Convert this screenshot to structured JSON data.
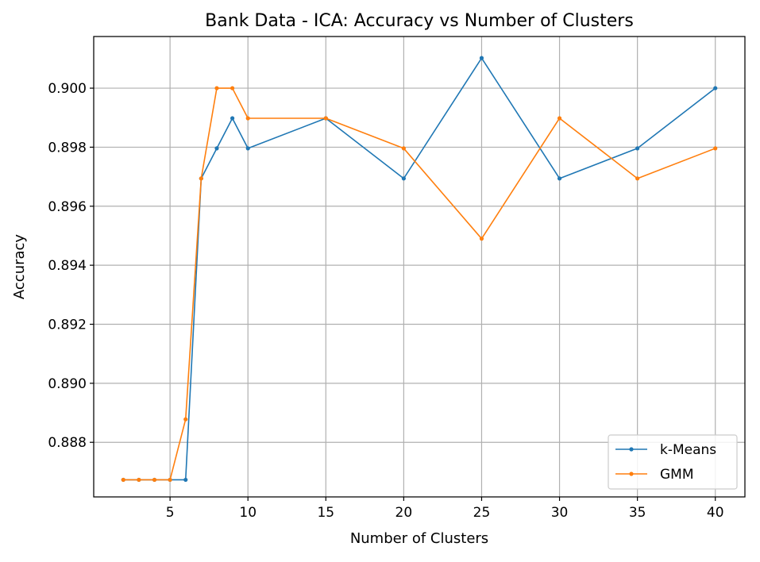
{
  "chart_data": {
    "type": "line",
    "title": "Bank Data - ICA: Accuracy vs Number of Clusters",
    "xlabel": "Number of Clusters",
    "ylabel": "Accuracy",
    "xlim": [
      0.1,
      41.9
    ],
    "ylim": [
      0.88615,
      0.90175
    ],
    "xticks": [
      5,
      10,
      15,
      20,
      25,
      30,
      35,
      40
    ],
    "xtick_labels": [
      "5",
      "10",
      "15",
      "20",
      "25",
      "30",
      "35",
      "40"
    ],
    "yticks": [
      0.888,
      0.89,
      0.892,
      0.894,
      0.896,
      0.898,
      0.9
    ],
    "ytick_labels": [
      "0.888",
      "0.890",
      "0.892",
      "0.894",
      "0.896",
      "0.898",
      "0.900"
    ],
    "grid": true,
    "legend_position": "lower right",
    "x": [
      2,
      3,
      4,
      5,
      6,
      7,
      8,
      9,
      10,
      15,
      20,
      25,
      30,
      35,
      40
    ],
    "series": [
      {
        "name": "k-Means",
        "color": "#1f77b4",
        "values": [
          0.88673,
          0.88673,
          0.88673,
          0.88673,
          0.88673,
          0.89694,
          0.89796,
          0.89898,
          0.89796,
          0.89898,
          0.89694,
          0.90102,
          0.89694,
          0.89796,
          0.9
        ]
      },
      {
        "name": "GMM",
        "color": "#ff7f0e",
        "values": [
          0.88673,
          0.88673,
          0.88673,
          0.88673,
          0.88878,
          0.89694,
          0.9,
          0.9,
          0.89898,
          0.89898,
          0.89796,
          0.8949,
          0.89898,
          0.89694,
          0.89796
        ]
      }
    ]
  }
}
